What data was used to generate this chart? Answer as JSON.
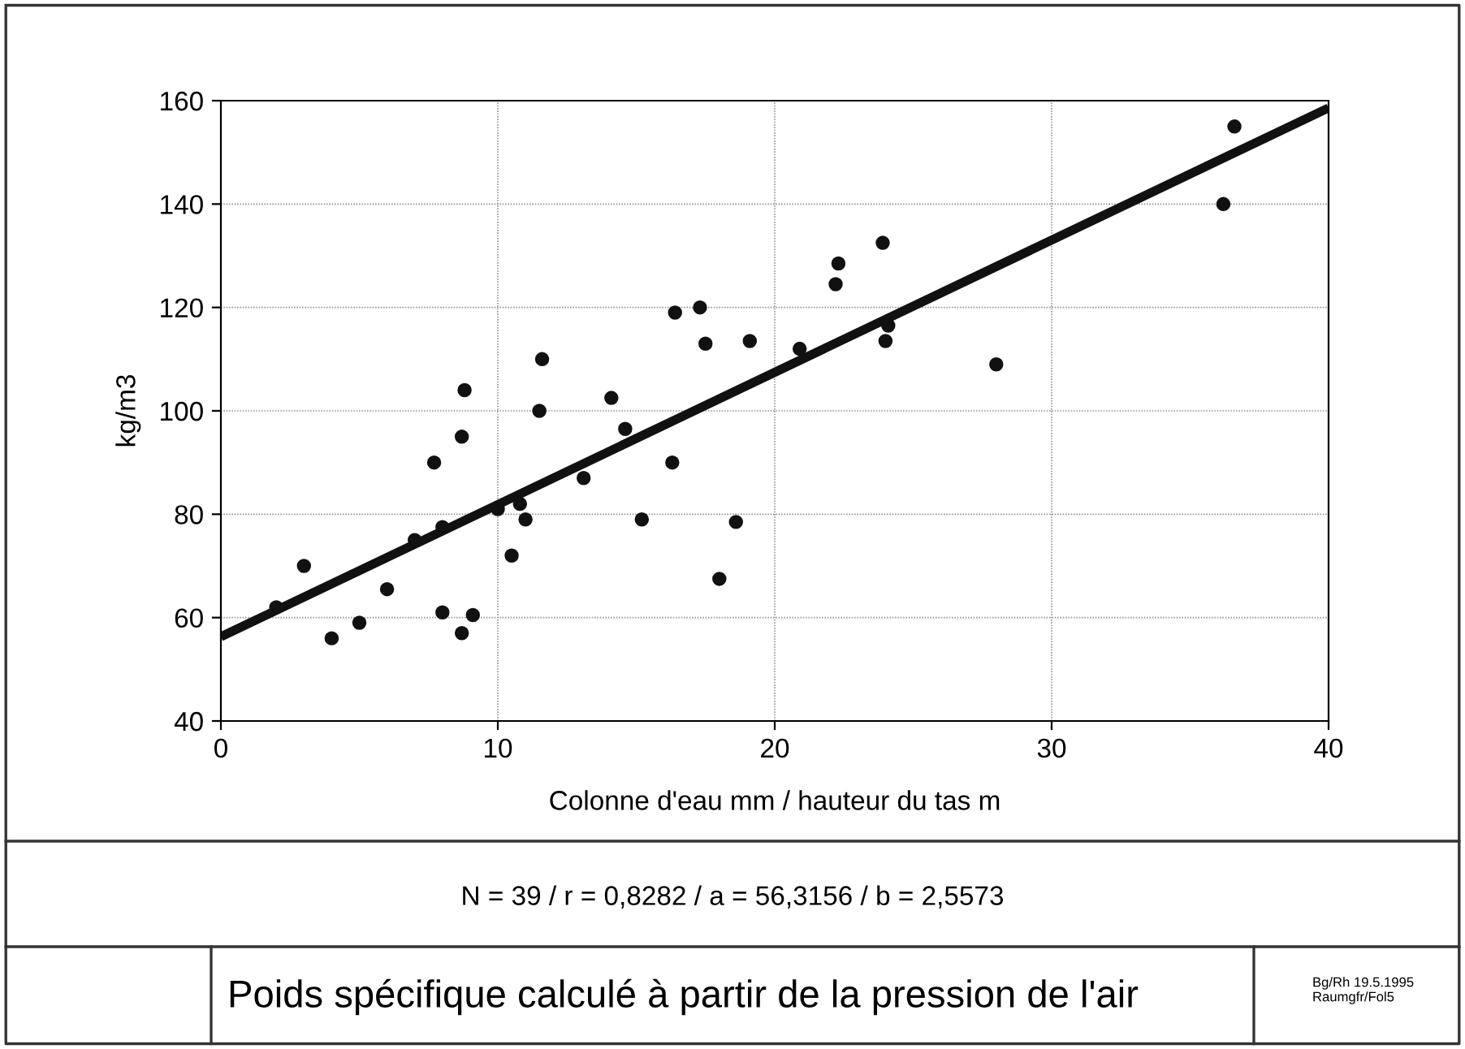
{
  "chart_data": {
    "type": "scatter",
    "title": "Poids spécifique calculé à partir de la pression de l'air",
    "xlabel": "Colonne d'eau mm / hauteur du tas m",
    "ylabel": "kg/m3",
    "annotations": [
      "N = 39 / r = 0,8282 / a = 56,3156 / b = 2,5573",
      "Bg/Rh 19.5.1995\nRaumgfr/Fol5"
    ],
    "series": [
      {
        "color": "#111111",
        "marker": "circle",
        "x": [
          2,
          3,
          4,
          5,
          6,
          7,
          7.7,
          8,
          8,
          8.7,
          8.7,
          8.8,
          9.1,
          10,
          10.5,
          10.8,
          11,
          11.5,
          11.6,
          13.1,
          14.1,
          14.6,
          15.2,
          16.3,
          16.4,
          17.3,
          17.5,
          18,
          18.6,
          19.1,
          20.9,
          22.2,
          22.3,
          23.9,
          24,
          24.1,
          28,
          36.2,
          36.6
        ],
        "values": [
          62,
          70,
          56,
          59,
          65.5,
          75,
          90,
          77.5,
          61,
          57,
          95,
          104,
          60.5,
          81,
          72,
          82,
          79,
          100,
          110,
          87,
          102.5,
          96.5,
          79,
          90,
          119,
          120,
          113,
          67.5,
          78.5,
          113.5,
          112,
          124.5,
          128.5,
          132.5,
          113.5,
          116.5,
          109,
          140,
          155
        ]
      },
      {
        "type": "line",
        "color": "#111111",
        "line_style": "solid",
        "x": [
          0,
          40
        ],
        "values": [
          56.3,
          158.6
        ]
      }
    ],
    "xlim": [
      0,
      40
    ],
    "ylim": [
      40,
      160
    ],
    "xticks": [
      0,
      10,
      20,
      30,
      40
    ],
    "yticks": [
      40,
      60,
      80,
      100,
      120,
      140,
      160
    ],
    "grid": true,
    "legend": false
  }
}
